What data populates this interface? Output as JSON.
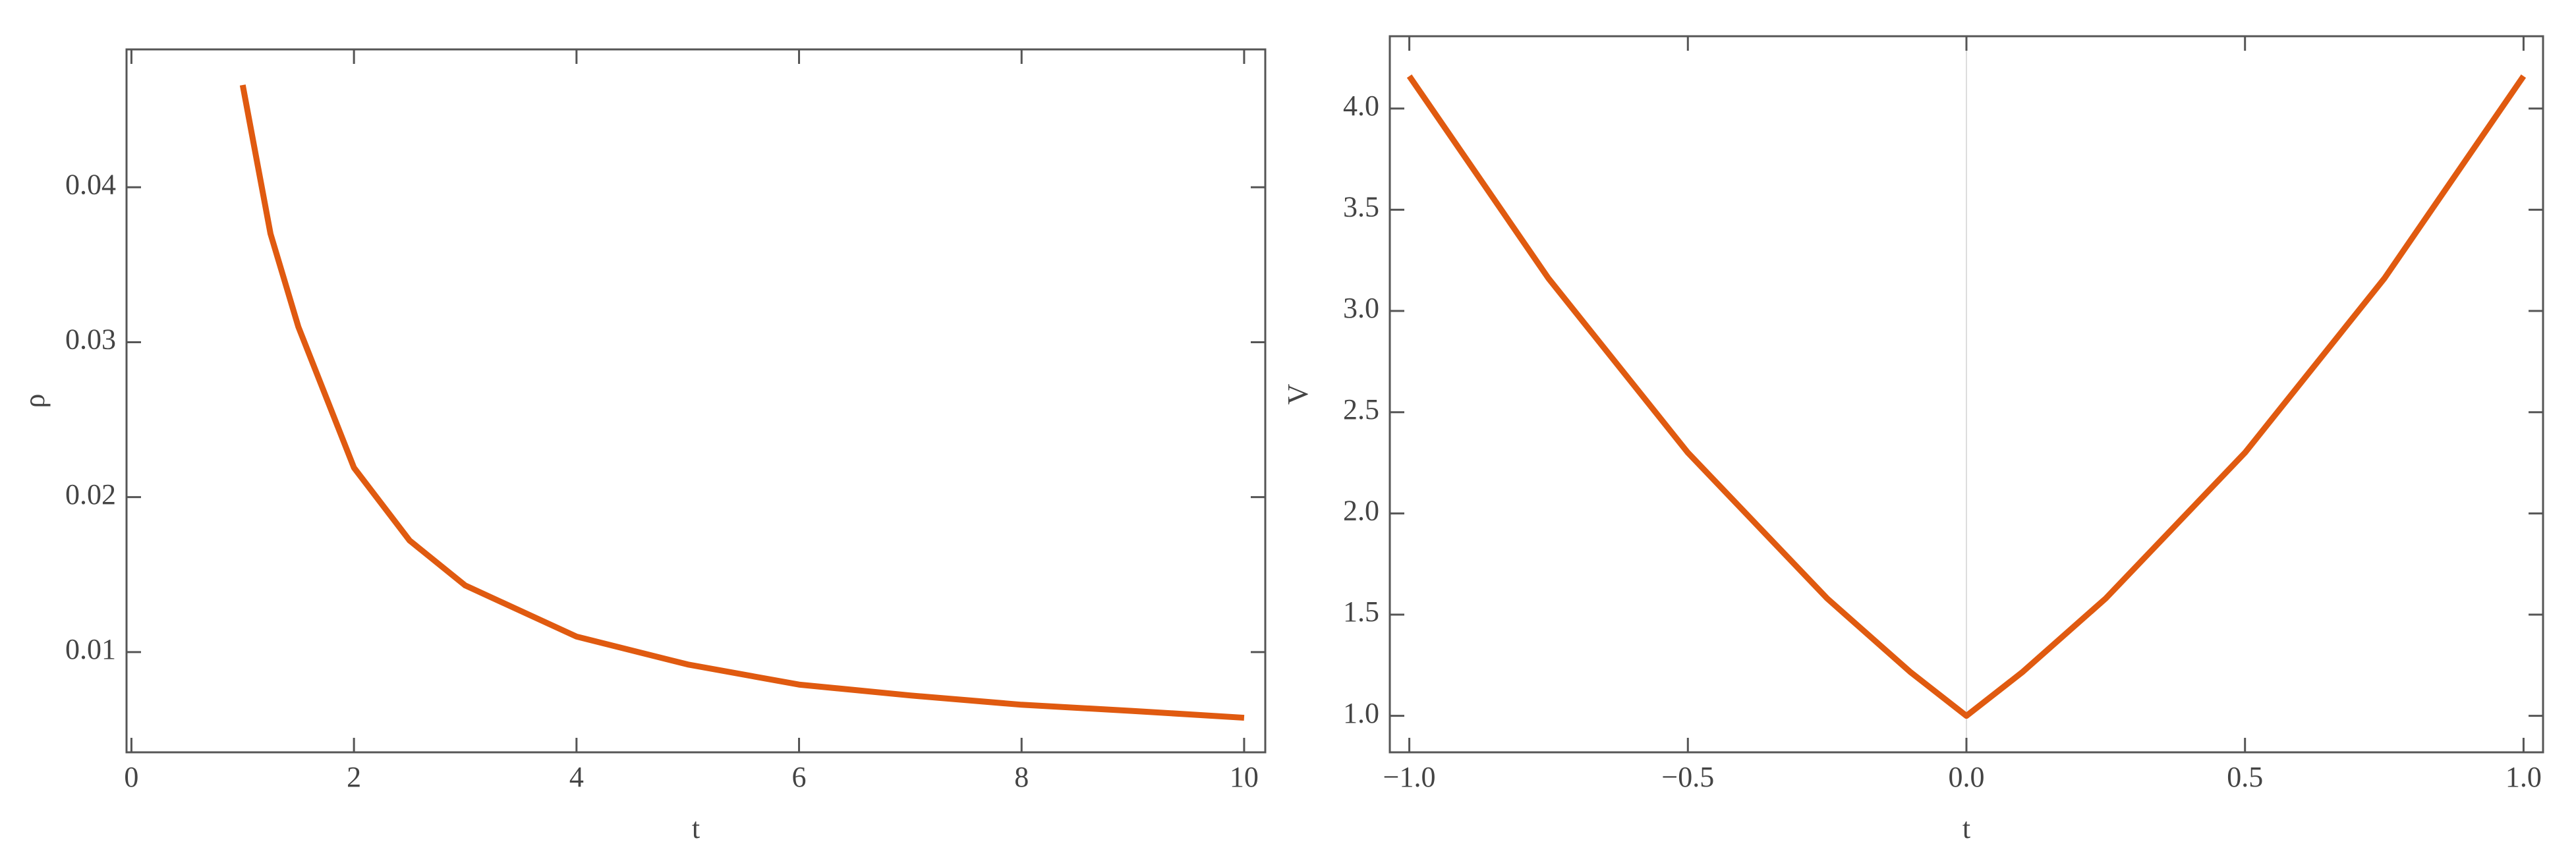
{
  "chart_data": [
    {
      "type": "line",
      "x_label": "t",
      "y_label": "ρ",
      "color": "#e05a10",
      "x": [
        1,
        1.25,
        1.5,
        2,
        2.5,
        3,
        4,
        5,
        6,
        7,
        8,
        9,
        10
      ],
      "values": [
        0.0466,
        0.037,
        0.031,
        0.0219,
        0.0172,
        0.0143,
        0.011,
        0.0092,
        0.0079,
        0.0072,
        0.0066,
        0.0062,
        0.00576
      ],
      "xlim": [
        -0.044,
        10.19
      ],
      "ylim": [
        0.00353,
        0.0489
      ],
      "xticks": [
        0,
        2,
        4,
        6,
        8,
        10
      ],
      "yticks": [
        0.01,
        0.02,
        0.03,
        0.04
      ]
    },
    {
      "type": "line",
      "x_label": "t",
      "y_label": "V",
      "color": "#e05a10",
      "zero_line": true,
      "x": [
        -1,
        -0.75,
        -0.5,
        -0.25,
        -0.1,
        0,
        0.1,
        0.25,
        0.5,
        0.75,
        1
      ],
      "values": [
        4.16,
        3.16,
        2.3,
        1.58,
        1.215,
        1.0,
        1.215,
        1.58,
        2.3,
        3.16,
        4.16
      ],
      "xlim": [
        -1.035,
        1.035
      ],
      "ylim": [
        0.82,
        4.357
      ],
      "xticks": [
        {
          "value": -1,
          "label": "−1.0"
        },
        {
          "value": -0.5,
          "label": "−0.5"
        },
        {
          "value": 0,
          "label": "0.0"
        },
        0.5,
        {
          "value": 1,
          "label": "1.0"
        }
      ],
      "yticks": [
        {
          "value": 1,
          "label": "1.0"
        },
        1.5,
        {
          "value": 2,
          "label": "2.0"
        },
        2.5,
        {
          "value": 3,
          "label": "3.0"
        },
        3.5,
        {
          "value": 4,
          "label": "4.0"
        }
      ]
    }
  ]
}
